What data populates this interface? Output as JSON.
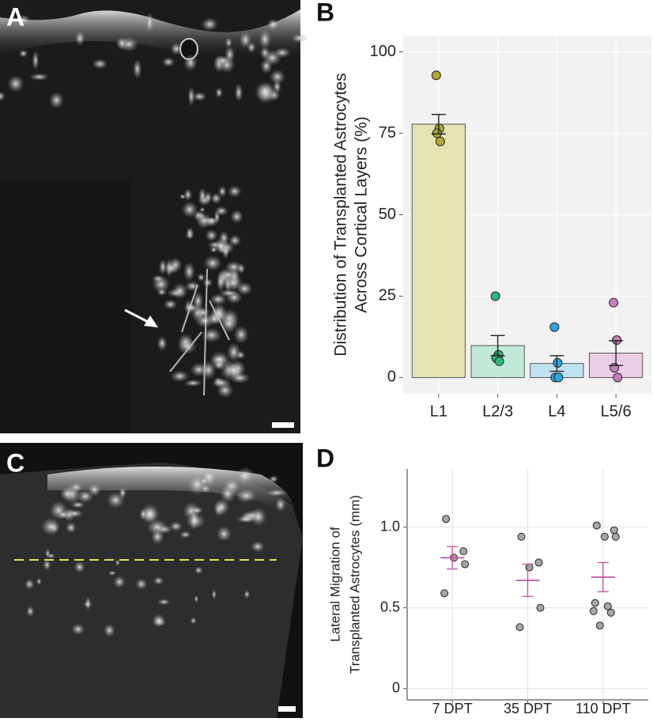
{
  "images": [
    {
      "label": "A"
    },
    {
      "label": "C"
    }
  ],
  "chart_data": [
    {
      "type": "bar",
      "panel_label": "B",
      "ylabel": [
        "Distribution of Transplanted Astrocytes",
        "Across Cortical Layers (%)"
      ],
      "categories": [
        "L1",
        "L2/3",
        "L4",
        "L5/6"
      ],
      "values": [
        77.8,
        9.8,
        4.3,
        7.5
      ],
      "errors": [
        3.0,
        3.1,
        2.4,
        3.8
      ],
      "points": [
        [
          92.8,
          76.5,
          75,
          72.5
        ],
        [
          25,
          7,
          6,
          5
        ],
        [
          15.5,
          4.5,
          0,
          0
        ],
        [
          23,
          11.5,
          3,
          0
        ]
      ],
      "colors": [
        "#e3e3b4",
        "#c2e8d8",
        "#bfe2f2",
        "#ebcde5"
      ],
      "point_colors": [
        "#b3a92f",
        "#2db877",
        "#2aa9e0",
        "#c47ebd"
      ],
      "ylim": [
        -5,
        105
      ],
      "yticks": [
        0,
        25,
        50,
        75,
        100
      ],
      "grid": true
    },
    {
      "type": "strip",
      "panel_label": "D",
      "ylabel": [
        "Lateral Migration of",
        "Transplanted Astrocytes (mm)"
      ],
      "categories": [
        "7 DPT",
        "35 DPT",
        "110 DPT"
      ],
      "points": [
        [
          1.05,
          0.85,
          0.81,
          0.77,
          0.59
        ],
        [
          0.94,
          0.78,
          0.75,
          0.5,
          0.38
        ],
        [
          1.01,
          0.98,
          0.94,
          0.94,
          0.53,
          0.51,
          0.48,
          0.47,
          0.39
        ]
      ],
      "means": [
        0.81,
        0.67,
        0.69
      ],
      "errors": [
        0.07,
        0.1,
        0.09
      ],
      "point_color": "#a6a6a6",
      "mean_color": "#c05aa8",
      "ylim": [
        -0.07,
        1.36
      ],
      "yticks": [
        0,
        0.5,
        {
          "value": 1,
          "label": "1.0"
        }
      ],
      "grid": true
    }
  ]
}
